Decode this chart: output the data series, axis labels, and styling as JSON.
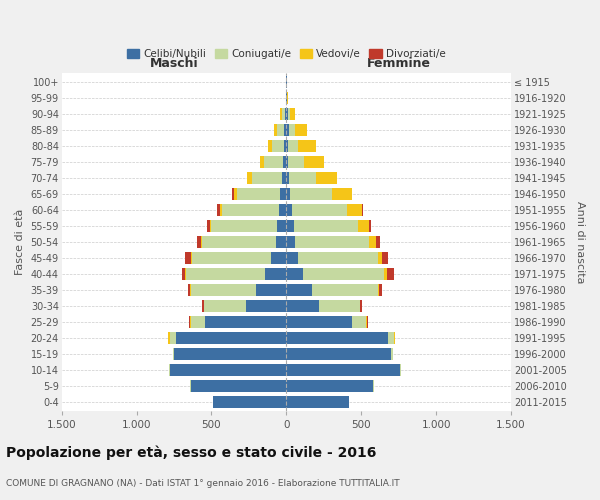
{
  "age_groups_bottom_to_top": [
    "0-4",
    "5-9",
    "10-14",
    "15-19",
    "20-24",
    "25-29",
    "30-34",
    "35-39",
    "40-44",
    "45-49",
    "50-54",
    "55-59",
    "60-64",
    "65-69",
    "70-74",
    "75-79",
    "80-84",
    "85-89",
    "90-94",
    "95-99",
    "100+"
  ],
  "birth_years_bottom_to_top": [
    "2011-2015",
    "2006-2010",
    "2001-2005",
    "1996-2000",
    "1991-1995",
    "1986-1990",
    "1981-1985",
    "1976-1980",
    "1971-1975",
    "1966-1970",
    "1961-1965",
    "1956-1960",
    "1951-1955",
    "1946-1950",
    "1941-1945",
    "1936-1940",
    "1931-1935",
    "1926-1930",
    "1921-1925",
    "1916-1920",
    "≤ 1915"
  ],
  "maschi": {
    "celibi": [
      490,
      640,
      780,
      750,
      740,
      540,
      270,
      200,
      140,
      100,
      70,
      60,
      50,
      40,
      30,
      20,
      15,
      15,
      10,
      2,
      2
    ],
    "coniugati": [
      1,
      2,
      5,
      10,
      40,
      100,
      280,
      440,
      530,
      530,
      490,
      440,
      380,
      290,
      200,
      130,
      80,
      50,
      20,
      2,
      2
    ],
    "vedovi": [
      0,
      0,
      0,
      0,
      10,
      3,
      2,
      3,
      5,
      5,
      8,
      10,
      15,
      20,
      30,
      25,
      30,
      20,
      10,
      0,
      0
    ],
    "divorziati": [
      0,
      0,
      0,
      0,
      2,
      5,
      10,
      15,
      20,
      40,
      30,
      20,
      15,
      10,
      5,
      0,
      0,
      0,
      0,
      0,
      0
    ]
  },
  "femmine": {
    "nubili": [
      420,
      580,
      760,
      700,
      680,
      440,
      220,
      170,
      110,
      80,
      60,
      50,
      35,
      25,
      20,
      10,
      10,
      15,
      10,
      2,
      2
    ],
    "coniugate": [
      1,
      2,
      5,
      10,
      40,
      95,
      270,
      440,
      540,
      530,
      490,
      430,
      370,
      280,
      180,
      110,
      70,
      40,
      15,
      1,
      1
    ],
    "vedove": [
      0,
      0,
      0,
      0,
      5,
      3,
      5,
      10,
      20,
      30,
      50,
      70,
      100,
      130,
      140,
      130,
      120,
      80,
      30,
      5,
      2
    ],
    "divorziate": [
      0,
      0,
      0,
      0,
      2,
      5,
      10,
      20,
      50,
      40,
      25,
      15,
      10,
      5,
      0,
      0,
      0,
      0,
      0,
      0,
      0
    ]
  },
  "colors": {
    "celibi_nubili": "#3d6fa3",
    "coniugati": "#c5d9a0",
    "vedovi": "#f5c518",
    "divorziati": "#c0392b"
  },
  "xlim": 1500,
  "title": "Popolazione per età, sesso e stato civile - 2016",
  "subtitle": "COMUNE DI GRAGNANO (NA) - Dati ISTAT 1° gennaio 2016 - Elaborazione TUTTITALIA.IT",
  "ylabel_left": "Fasce di età",
  "ylabel_right": "Anni di nascita",
  "xlabel_left": "Maschi",
  "xlabel_right": "Femmine",
  "bg_color": "#f0f0f0",
  "plot_bg": "#ffffff"
}
